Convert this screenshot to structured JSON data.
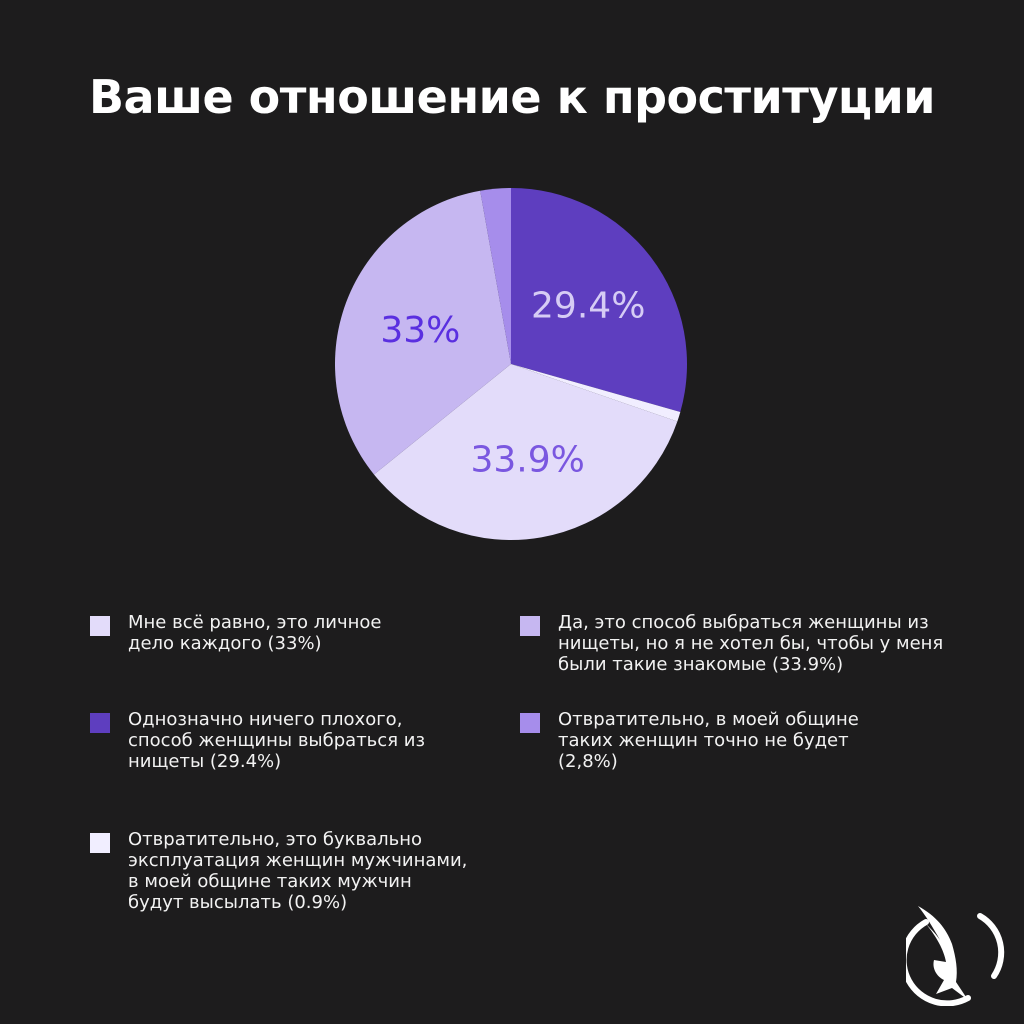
{
  "title": "Ваше отношение к проституции",
  "chart_data": {
    "type": "pie",
    "title": "Ваше отношение к проституции",
    "slices": [
      {
        "label": "Однозначно ничего плохого, способ женщины выбраться из нищеты (29.4%)",
        "value": 29.4,
        "display": "29.4%",
        "color": "#5e3ebf",
        "text_color": "#d6ccf5"
      },
      {
        "label": "Отвратительно, это буквально эксплуатация женщин мужчинами, в моей общине таких мужчин будут высылать (0.9%)",
        "value": 0.9,
        "display": "",
        "color": "#f1eeff",
        "text_color": "#6a48d8"
      },
      {
        "label": "Да, это способ выбраться женщины из нищеты, но я не хотел бы, чтобы у меня были такие знакомые (33.9%)",
        "value": 33.9,
        "display": "33.9%",
        "color": "#e3dcfa",
        "text_color": "#7a57e0"
      },
      {
        "label": "Мне всё равно, это личное дело каждого (33%)",
        "value": 33.0,
        "display": "33%",
        "color": "#c6b7f1",
        "text_color": "#5a2fe0"
      },
      {
        "label": "Отвратительно, в моей общине таких женщин точно не будет (2,8%)",
        "value": 2.8,
        "display": "",
        "color": "#a68deb",
        "text_color": "#5a2fe0"
      }
    ]
  },
  "legend": [
    {
      "text": "Мне всё равно, это личное дело каждого (33%)",
      "color": "#e3dcfa"
    },
    {
      "text": "Да, это способ выбраться женщины из нищеты, но я не хотел бы, чтобы у меня были такие знакомые (33.9%)",
      "color": "#c6b7f1"
    },
    {
      "text": "Однозначно ничего плохого, способ женщины выбраться из нищеты (29.4%)",
      "color": "#5e3ebf"
    },
    {
      "text": "Отвратительно, в моей общине таких женщин точно не будет (2,8%)",
      "color": "#a68deb"
    },
    {
      "text": "Отвратительно, это буквально эксплуатация женщин мужчинами, в моей общине таких мужчин будут высылать (0.9%)",
      "color": "#f1eeff"
    }
  ],
  "logo": {
    "icon": "eagle-circle-logo-icon"
  }
}
